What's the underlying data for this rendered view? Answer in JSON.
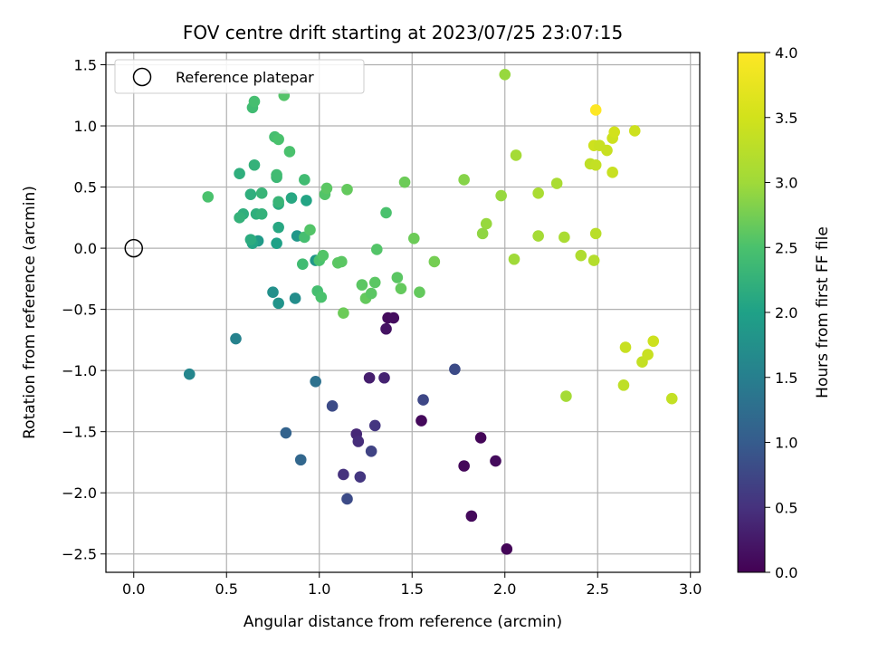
{
  "chart_data": {
    "type": "scatter",
    "title": "FOV centre drift starting at 2023/07/25 23:07:15",
    "xlabel": "Angular distance from reference (arcmin)",
    "ylabel": "Rotation from reference (arcmin)",
    "xlim": [
      -0.15,
      3.05
    ],
    "ylim": [
      -2.65,
      1.6
    ],
    "xticks": [
      "0.0",
      "0.5",
      "1.0",
      "1.5",
      "2.0",
      "2.5",
      "3.0"
    ],
    "xtick_values": [
      0,
      0.5,
      1,
      1.5,
      2,
      2.5,
      3
    ],
    "yticks": [
      "−2.5",
      "−2.0",
      "−1.5",
      "−1.0",
      "−0.5",
      "0.0",
      "0.5",
      "1.0",
      "1.5"
    ],
    "ytick_values": [
      -2.5,
      -2,
      -1.5,
      -1,
      -0.5,
      0,
      0.5,
      1,
      1.5
    ],
    "grid": true,
    "legend": {
      "placement": "upper-left",
      "label": "Reference platepar"
    },
    "reference_point": {
      "x": 0.0,
      "y": 0.0
    },
    "colorbar": {
      "label": "Hours from first FF file",
      "range": [
        0,
        4.0
      ],
      "colormap": "viridis",
      "ticks": [
        "0.0",
        "0.5",
        "1.0",
        "1.5",
        "2.0",
        "2.5",
        "3.0",
        "3.5",
        "4.0"
      ],
      "tick_values": [
        0,
        0.5,
        1,
        1.5,
        2,
        2.5,
        3,
        3.5,
        4
      ]
    },
    "points": [
      {
        "x": 1.37,
        "y": -0.57,
        "h": 0.1
      },
      {
        "x": 1.4,
        "y": -0.57,
        "h": 0.12
      },
      {
        "x": 1.36,
        "y": -0.66,
        "h": 0.18
      },
      {
        "x": 1.55,
        "y": -1.41,
        "h": 0.08
      },
      {
        "x": 1.87,
        "y": -1.55,
        "h": 0.05
      },
      {
        "x": 1.78,
        "y": -1.78,
        "h": 0.06
      },
      {
        "x": 1.95,
        "y": -1.74,
        "h": 0.1
      },
      {
        "x": 1.82,
        "y": -2.19,
        "h": 0.08
      },
      {
        "x": 2.01,
        "y": -2.46,
        "h": 0.05
      },
      {
        "x": 1.27,
        "y": -1.06,
        "h": 0.3
      },
      {
        "x": 1.35,
        "y": -1.06,
        "h": 0.35
      },
      {
        "x": 1.2,
        "y": -1.52,
        "h": 0.4
      },
      {
        "x": 1.21,
        "y": -1.58,
        "h": 0.45
      },
      {
        "x": 1.3,
        "y": -1.45,
        "h": 0.55
      },
      {
        "x": 1.13,
        "y": -1.85,
        "h": 0.5
      },
      {
        "x": 1.22,
        "y": -1.87,
        "h": 0.55
      },
      {
        "x": 1.28,
        "y": -1.66,
        "h": 0.7
      },
      {
        "x": 1.15,
        "y": -2.05,
        "h": 0.8
      },
      {
        "x": 1.07,
        "y": -1.29,
        "h": 0.8
      },
      {
        "x": 1.56,
        "y": -1.24,
        "h": 0.75
      },
      {
        "x": 1.73,
        "y": -0.99,
        "h": 0.8
      },
      {
        "x": 0.82,
        "y": -1.51,
        "h": 1.1
      },
      {
        "x": 0.9,
        "y": -1.73,
        "h": 1.15
      },
      {
        "x": 0.98,
        "y": -1.09,
        "h": 1.3
      },
      {
        "x": 0.3,
        "y": -1.03,
        "h": 1.6
      },
      {
        "x": 0.55,
        "y": -0.74,
        "h": 1.55
      },
      {
        "x": 0.87,
        "y": -0.41,
        "h": 1.7
      },
      {
        "x": 0.78,
        "y": -0.45,
        "h": 1.8
      },
      {
        "x": 0.75,
        "y": -0.36,
        "h": 1.75
      },
      {
        "x": 0.98,
        "y": -0.1,
        "h": 1.85
      },
      {
        "x": 0.67,
        "y": 0.06,
        "h": 1.9
      },
      {
        "x": 0.88,
        "y": 0.1,
        "h": 1.85
      },
      {
        "x": 0.64,
        "y": 0.04,
        "h": 2.05
      },
      {
        "x": 0.77,
        "y": 0.04,
        "h": 2.0
      },
      {
        "x": 0.78,
        "y": 0.17,
        "h": 2.1
      },
      {
        "x": 0.63,
        "y": 0.07,
        "h": 2.15
      },
      {
        "x": 0.59,
        "y": 0.28,
        "h": 2.2
      },
      {
        "x": 0.57,
        "y": 0.25,
        "h": 2.25
      },
      {
        "x": 0.66,
        "y": 0.28,
        "h": 2.2
      },
      {
        "x": 0.69,
        "y": 0.28,
        "h": 2.25
      },
      {
        "x": 0.78,
        "y": 0.36,
        "h": 2.15
      },
      {
        "x": 0.85,
        "y": 0.41,
        "h": 2.1
      },
      {
        "x": 0.93,
        "y": 0.39,
        "h": 2.05
      },
      {
        "x": 0.63,
        "y": 0.44,
        "h": 2.2
      },
      {
        "x": 0.69,
        "y": 0.45,
        "h": 2.3
      },
      {
        "x": 0.78,
        "y": 0.38,
        "h": 2.3
      },
      {
        "x": 0.57,
        "y": 0.61,
        "h": 2.2
      },
      {
        "x": 0.65,
        "y": 0.68,
        "h": 2.25
      },
      {
        "x": 0.77,
        "y": 0.58,
        "h": 2.35
      },
      {
        "x": 0.77,
        "y": 0.6,
        "h": 2.4
      },
      {
        "x": 0.92,
        "y": 0.56,
        "h": 2.4
      },
      {
        "x": 0.4,
        "y": 0.42,
        "h": 2.5
      },
      {
        "x": 0.64,
        "y": 1.15,
        "h": 2.4
      },
      {
        "x": 0.65,
        "y": 1.2,
        "h": 2.45
      },
      {
        "x": 0.76,
        "y": 0.91,
        "h": 2.45
      },
      {
        "x": 0.78,
        "y": 0.89,
        "h": 2.5
      },
      {
        "x": 0.84,
        "y": 0.79,
        "h": 2.5
      },
      {
        "x": 0.81,
        "y": 1.25,
        "h": 2.55
      },
      {
        "x": 0.91,
        "y": -0.13,
        "h": 2.4
      },
      {
        "x": 0.92,
        "y": 0.09,
        "h": 2.45
      },
      {
        "x": 0.95,
        "y": 0.15,
        "h": 2.55
      },
      {
        "x": 1.0,
        "y": -0.1,
        "h": 2.5
      },
      {
        "x": 1.02,
        "y": -0.06,
        "h": 2.55
      },
      {
        "x": 0.99,
        "y": -0.35,
        "h": 2.45
      },
      {
        "x": 1.01,
        "y": -0.4,
        "h": 2.5
      },
      {
        "x": 1.03,
        "y": 0.44,
        "h": 2.55
      },
      {
        "x": 1.04,
        "y": 0.49,
        "h": 2.6
      },
      {
        "x": 1.1,
        "y": -0.12,
        "h": 2.6
      },
      {
        "x": 1.12,
        "y": -0.11,
        "h": 2.6
      },
      {
        "x": 1.15,
        "y": 0.48,
        "h": 2.65
      },
      {
        "x": 1.13,
        "y": -0.53,
        "h": 2.7
      },
      {
        "x": 1.23,
        "y": -0.3,
        "h": 2.6
      },
      {
        "x": 1.25,
        "y": -0.41,
        "h": 2.65
      },
      {
        "x": 1.28,
        "y": -0.37,
        "h": 2.6
      },
      {
        "x": 1.3,
        "y": -0.28,
        "h": 2.6
      },
      {
        "x": 1.31,
        "y": -0.01,
        "h": 2.55
      },
      {
        "x": 1.36,
        "y": 0.29,
        "h": 2.5
      },
      {
        "x": 1.42,
        "y": -0.24,
        "h": 2.6
      },
      {
        "x": 1.44,
        "y": -0.33,
        "h": 2.65
      },
      {
        "x": 1.46,
        "y": 0.54,
        "h": 2.7
      },
      {
        "x": 1.51,
        "y": 0.08,
        "h": 2.7
      },
      {
        "x": 1.54,
        "y": -0.36,
        "h": 2.65
      },
      {
        "x": 1.62,
        "y": -0.11,
        "h": 2.75
      },
      {
        "x": 1.78,
        "y": 0.56,
        "h": 2.85
      },
      {
        "x": 1.88,
        "y": 0.12,
        "h": 2.9
      },
      {
        "x": 1.9,
        "y": 0.2,
        "h": 2.95
      },
      {
        "x": 1.98,
        "y": 0.43,
        "h": 2.95
      },
      {
        "x": 2.0,
        "y": 1.42,
        "h": 2.95
      },
      {
        "x": 2.05,
        "y": -0.09,
        "h": 3.0
      },
      {
        "x": 2.06,
        "y": 0.76,
        "h": 3.05
      },
      {
        "x": 2.18,
        "y": 0.45,
        "h": 3.1
      },
      {
        "x": 2.18,
        "y": 0.1,
        "h": 3.05
      },
      {
        "x": 2.28,
        "y": 0.53,
        "h": 3.1
      },
      {
        "x": 2.32,
        "y": 0.09,
        "h": 3.1
      },
      {
        "x": 2.33,
        "y": -1.21,
        "h": 3.05
      },
      {
        "x": 2.41,
        "y": -0.06,
        "h": 3.15
      },
      {
        "x": 2.48,
        "y": -0.1,
        "h": 3.2
      },
      {
        "x": 2.49,
        "y": 0.12,
        "h": 3.25
      },
      {
        "x": 2.46,
        "y": 0.69,
        "h": 3.3
      },
      {
        "x": 2.49,
        "y": 0.68,
        "h": 3.35
      },
      {
        "x": 2.48,
        "y": 0.84,
        "h": 3.45
      },
      {
        "x": 2.51,
        "y": 0.84,
        "h": 3.4
      },
      {
        "x": 2.55,
        "y": 0.8,
        "h": 3.4
      },
      {
        "x": 2.58,
        "y": 0.9,
        "h": 3.45
      },
      {
        "x": 2.59,
        "y": 0.95,
        "h": 3.5
      },
      {
        "x": 2.58,
        "y": 0.62,
        "h": 3.4
      },
      {
        "x": 2.7,
        "y": 0.96,
        "h": 3.45
      },
      {
        "x": 2.49,
        "y": 1.13,
        "h": 4.0
      },
      {
        "x": 2.64,
        "y": -1.12,
        "h": 3.3
      },
      {
        "x": 2.65,
        "y": -0.81,
        "h": 3.4
      },
      {
        "x": 2.74,
        "y": -0.93,
        "h": 3.35
      },
      {
        "x": 2.77,
        "y": -0.87,
        "h": 3.4
      },
      {
        "x": 2.8,
        "y": -0.76,
        "h": 3.45
      },
      {
        "x": 2.9,
        "y": -1.23,
        "h": 3.35
      }
    ]
  }
}
